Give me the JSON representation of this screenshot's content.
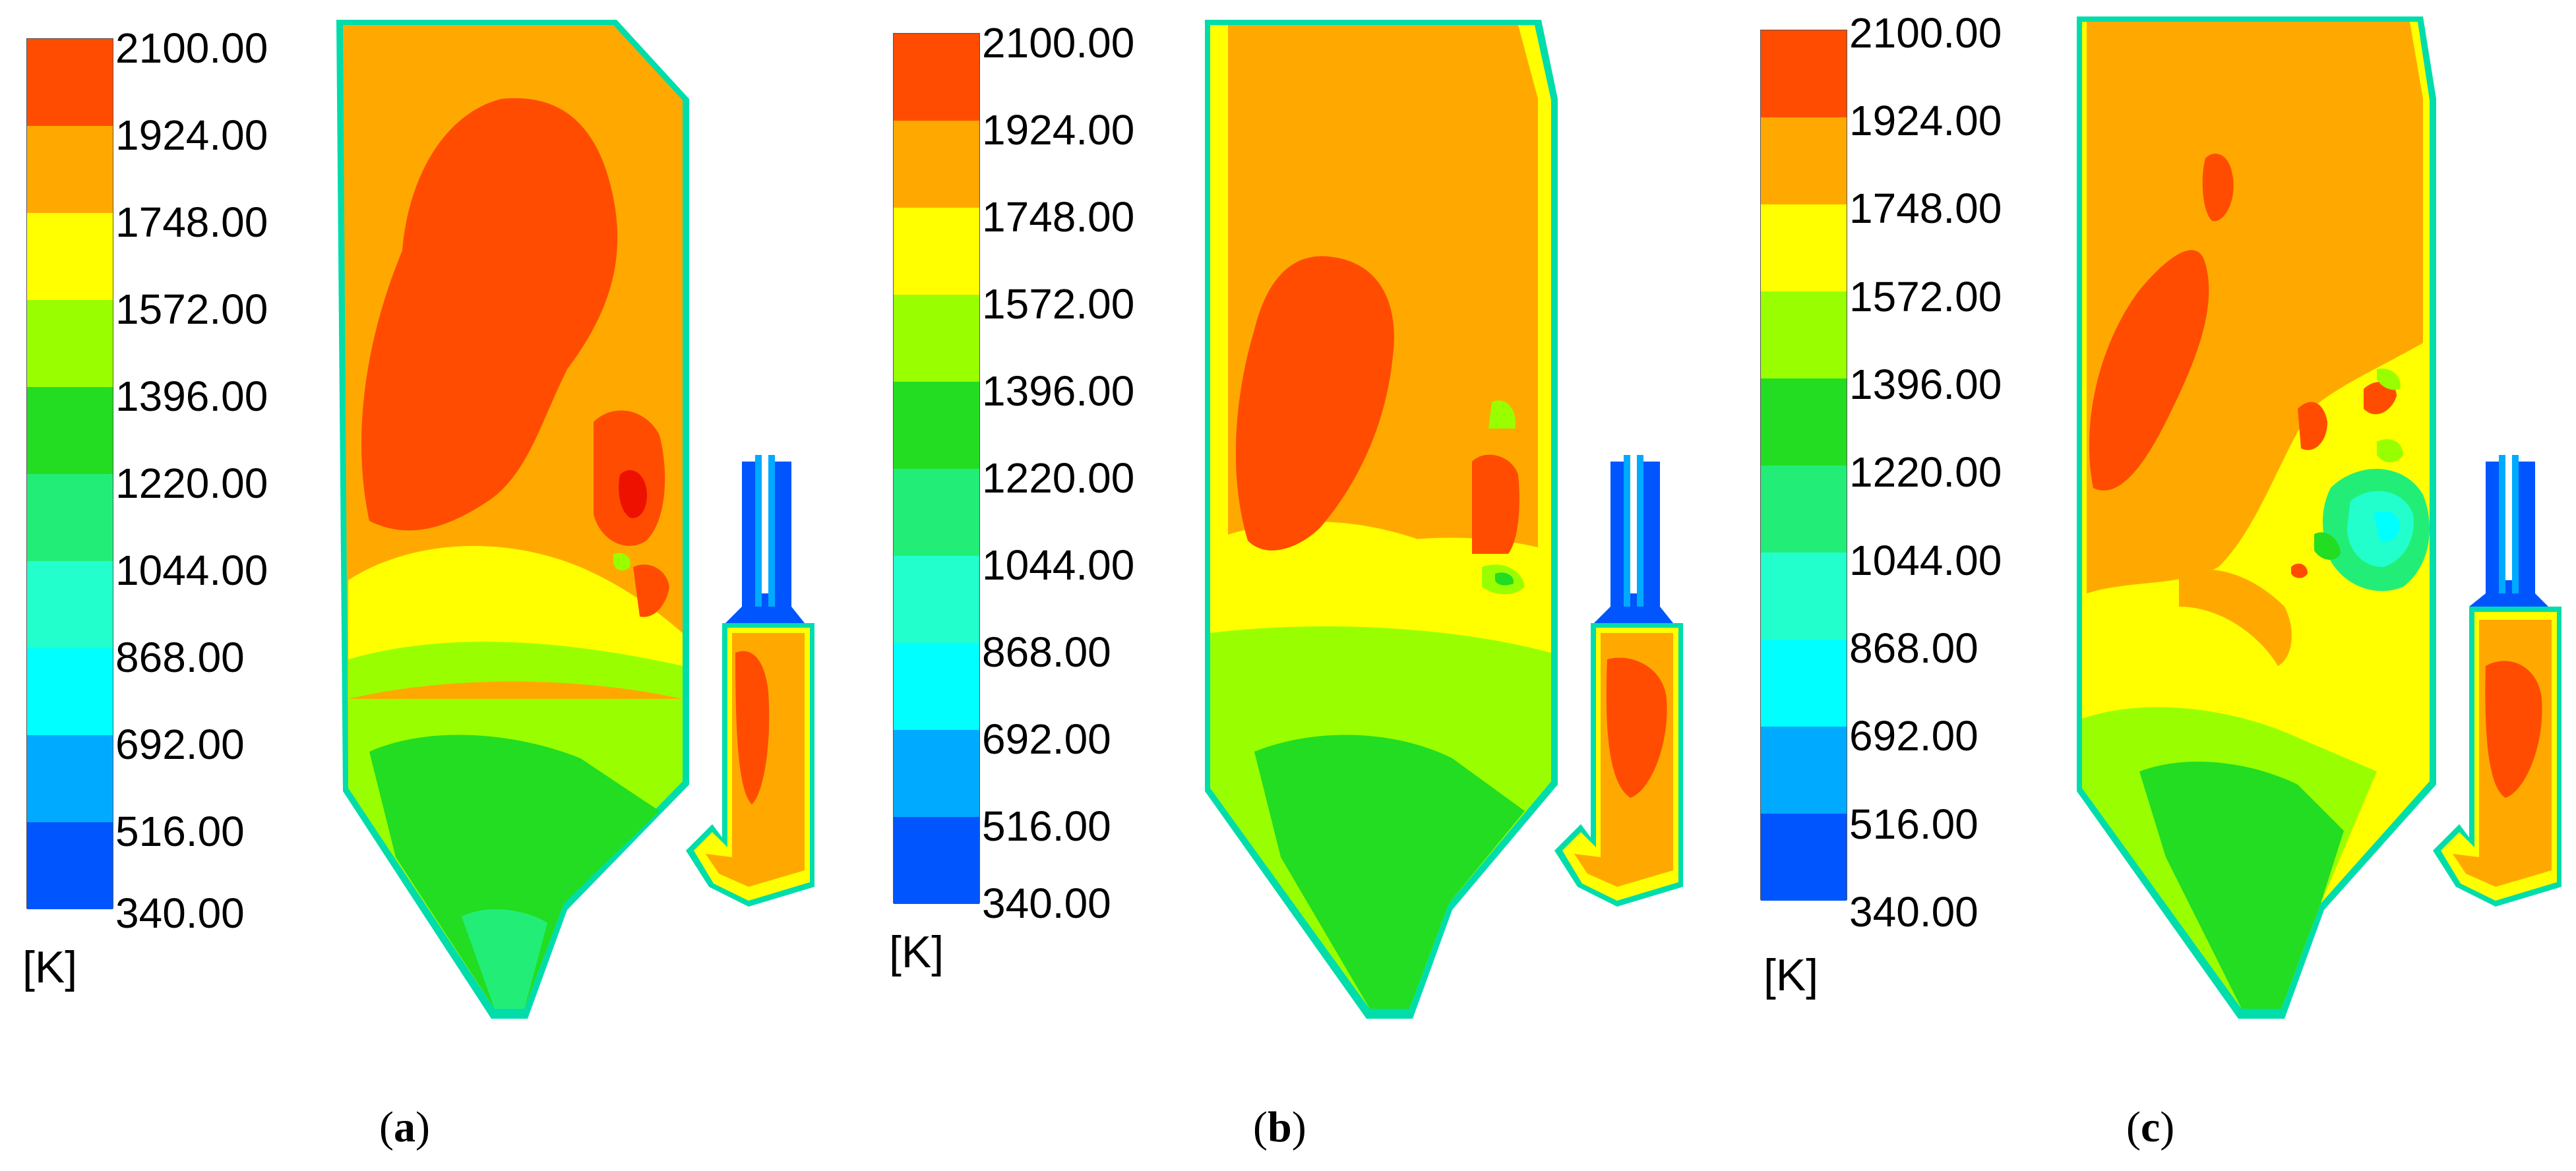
{
  "colorbar": {
    "ticks": [
      "2100.00",
      "1924.00",
      "1748.00",
      "1572.00",
      "1396.00",
      "1220.00",
      "1044.00",
      "868.00",
      "692.00",
      "516.00",
      "340.00"
    ],
    "colors": [
      "#ff4c00",
      "#ffa900",
      "#ffff00",
      "#99ff00",
      "#22dd22",
      "#22ee77",
      "#22ffcc",
      "#00ffff",
      "#00aaff",
      "#0055ff"
    ],
    "unit": "[K]"
  },
  "panels": [
    {
      "caption_open": "(",
      "caption_letter": "a",
      "caption_close": ")"
    },
    {
      "caption_open": "(",
      "caption_letter": "b",
      "caption_close": ")"
    },
    {
      "caption_open": "(",
      "caption_letter": "c",
      "caption_close": ")"
    }
  ]
}
